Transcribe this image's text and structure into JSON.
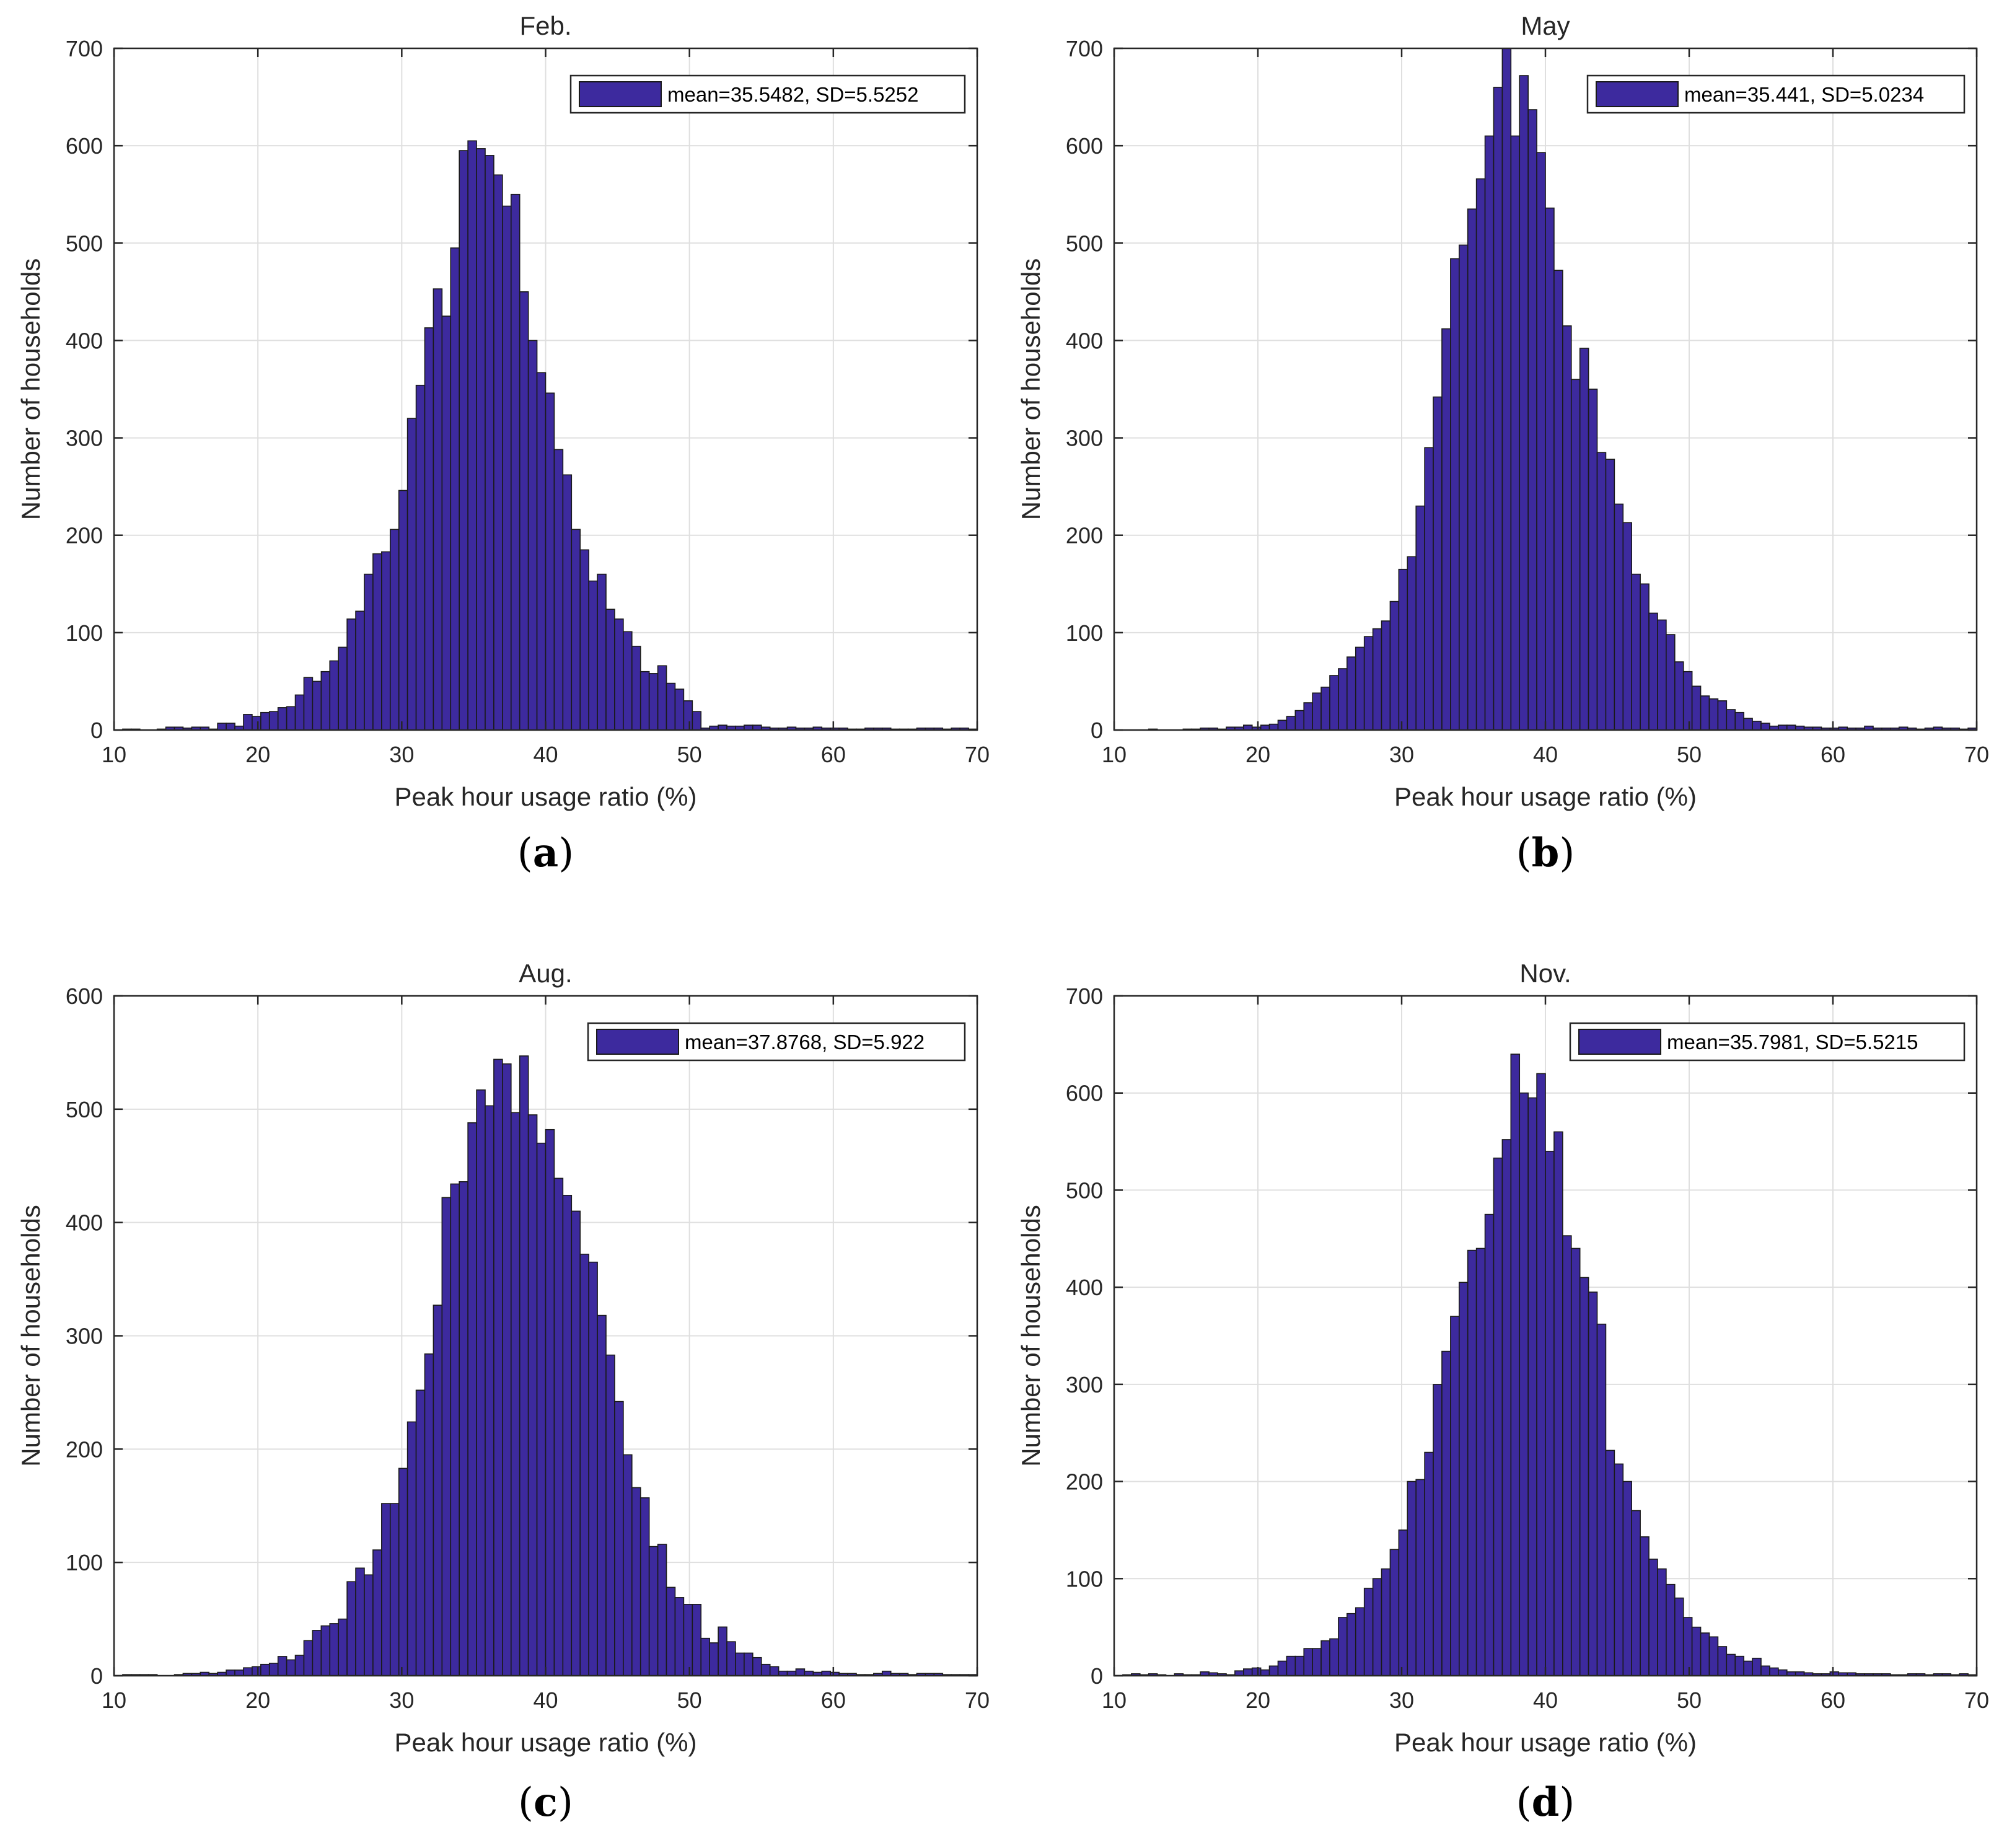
{
  "figure": {
    "panels": [
      "(a)",
      "(b)",
      "(c)",
      "(d)"
    ]
  },
  "colors": {
    "bar_fill": "#3d2a9e",
    "bar_edge": "#1a1a1a",
    "grid": "#dfdfdf",
    "axis": "#262626"
  },
  "chart_data": [
    {
      "type": "bar",
      "title": "Feb.",
      "xlabel": "Peak hour usage ratio (%)",
      "ylabel": "Number of households",
      "xlim": [
        10,
        70
      ],
      "ylim": [
        0,
        700
      ],
      "xticks": [
        10,
        20,
        30,
        40,
        50,
        60,
        70
      ],
      "yticks": [
        0,
        100,
        200,
        300,
        400,
        500,
        600,
        700
      ],
      "grid": true,
      "legend": {
        "label": "mean=35.5482, SD=5.5252",
        "position": "top-right"
      },
      "bin_start": 10,
      "bin_width": 0.6,
      "values": [
        0,
        1,
        1,
        0,
        0,
        1,
        3,
        3,
        2,
        3,
        3,
        1,
        7,
        7,
        4,
        16,
        14,
        18,
        19,
        23,
        24,
        36,
        54,
        50,
        60,
        71,
        85,
        114,
        122,
        160,
        181,
        183,
        206,
        246,
        320,
        354,
        413,
        453,
        425,
        495,
        595,
        605,
        597,
        590,
        570,
        538,
        550,
        450,
        400,
        367,
        346,
        288,
        262,
        206,
        185,
        153,
        160,
        124,
        114,
        101,
        86,
        60,
        58,
        66,
        48,
        42,
        30,
        19,
        2,
        4,
        5,
        4,
        4,
        5,
        5,
        3,
        2,
        2,
        3,
        2,
        2,
        3,
        2,
        2,
        2,
        1,
        1,
        2,
        2,
        2,
        1,
        1,
        1,
        2,
        2,
        2,
        1,
        2,
        2,
        1,
        1
      ]
    },
    {
      "type": "bar",
      "title": "May",
      "xlabel": "Peak hour usage ratio (%)",
      "ylabel": "Number of households",
      "xlim": [
        10,
        70
      ],
      "ylim": [
        0,
        700
      ],
      "xticks": [
        10,
        20,
        30,
        40,
        50,
        60,
        70
      ],
      "yticks": [
        0,
        100,
        200,
        300,
        400,
        500,
        600,
        700
      ],
      "grid": true,
      "legend": {
        "label": "mean=35.441, SD=5.0234",
        "position": "top-right"
      },
      "bin_start": 10,
      "bin_width": 0.6,
      "values": [
        0,
        0,
        0,
        0,
        1,
        0,
        0,
        0,
        1,
        1,
        2,
        2,
        1,
        3,
        3,
        5,
        3,
        5,
        6,
        10,
        14,
        20,
        28,
        38,
        44,
        56,
        63,
        75,
        85,
        96,
        104,
        112,
        132,
        165,
        178,
        230,
        290,
        342,
        412,
        484,
        498,
        535,
        566,
        610,
        660,
        700,
        610,
        672,
        637,
        593,
        536,
        472,
        415,
        360,
        392,
        350,
        285,
        278,
        232,
        213,
        160,
        150,
        120,
        113,
        98,
        70,
        60,
        45,
        35,
        32,
        30,
        21,
        18,
        12,
        9,
        7,
        4,
        5,
        5,
        4,
        3,
        3,
        2,
        2,
        3,
        2,
        2,
        4,
        2,
        2,
        2,
        3,
        2,
        1,
        2,
        3,
        2,
        2,
        1,
        2,
        2
      ]
    },
    {
      "type": "bar",
      "title": "Aug.",
      "xlabel": "Peak hour usage ratio (%)",
      "ylabel": "Number of households",
      "xlim": [
        10,
        70
      ],
      "ylim": [
        0,
        600
      ],
      "xticks": [
        10,
        20,
        30,
        40,
        50,
        60,
        70
      ],
      "yticks": [
        0,
        100,
        200,
        300,
        400,
        500,
        600
      ],
      "grid": true,
      "legend": {
        "label": "mean=37.8768, SD=5.922",
        "position": "top-right"
      },
      "bin_start": 10,
      "bin_width": 0.6,
      "values": [
        0,
        1,
        1,
        1,
        1,
        0,
        0,
        1,
        2,
        2,
        3,
        2,
        3,
        5,
        5,
        7,
        8,
        10,
        11,
        17,
        14,
        18,
        31,
        40,
        44,
        46,
        50,
        83,
        95,
        89,
        111,
        152,
        152,
        183,
        224,
        252,
        284,
        327,
        422,
        434,
        436,
        488,
        517,
        503,
        544,
        540,
        497,
        547,
        495,
        470,
        482,
        439,
        424,
        410,
        372,
        365,
        318,
        283,
        242,
        195,
        166,
        157,
        114,
        116,
        78,
        69,
        63,
        63,
        33,
        29,
        43,
        30,
        20,
        20,
        16,
        10,
        8,
        4,
        4,
        6,
        4,
        3,
        4,
        3,
        2,
        2,
        1,
        1,
        2,
        4,
        2,
        2,
        1,
        2,
        2,
        2,
        1,
        1,
        1,
        1,
        1
      ]
    },
    {
      "type": "bar",
      "title": "Nov.",
      "xlabel": "Peak hour usage ratio (%)",
      "ylabel": "Number of households",
      "xlim": [
        10,
        70
      ],
      "ylim": [
        0,
        700
      ],
      "xticks": [
        10,
        20,
        30,
        40,
        50,
        60,
        70
      ],
      "yticks": [
        0,
        100,
        200,
        300,
        400,
        500,
        600,
        700
      ],
      "grid": true,
      "legend": {
        "label": "mean=35.7981, SD=5.5215",
        "position": "top-right"
      },
      "bin_start": 10,
      "bin_width": 0.6,
      "values": [
        0,
        1,
        2,
        1,
        2,
        1,
        0,
        2,
        1,
        1,
        4,
        3,
        2,
        1,
        5,
        7,
        8,
        6,
        10,
        15,
        20,
        20,
        28,
        28,
        36,
        38,
        60,
        64,
        70,
        90,
        100,
        110,
        130,
        150,
        200,
        202,
        230,
        300,
        334,
        370,
        405,
        438,
        440,
        475,
        533,
        552,
        640,
        600,
        595,
        620,
        540,
        560,
        453,
        440,
        410,
        395,
        362,
        232,
        218,
        200,
        170,
        143,
        120,
        110,
        94,
        80,
        60,
        50,
        44,
        40,
        30,
        22,
        20,
        15,
        18,
        10,
        8,
        6,
        4,
        4,
        3,
        2,
        2,
        4,
        3,
        3,
        2,
        2,
        2,
        2,
        1,
        1,
        2,
        2,
        1,
        2,
        2,
        1,
        2,
        1,
        1
      ]
    }
  ]
}
